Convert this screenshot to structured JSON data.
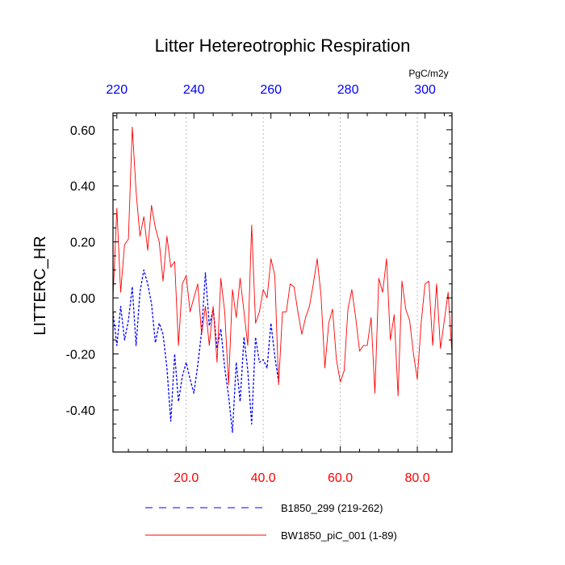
{
  "chart_data": {
    "type": "line",
    "title": "Litter Hetereotrophic Respiration",
    "ylabel": "LITTERC_HR",
    "units": "PgC/m2y",
    "ylim": [
      -0.55,
      0.66
    ],
    "yticks": [
      -0.4,
      -0.2,
      0.0,
      0.2,
      0.4,
      0.6
    ],
    "ytick_labels": [
      "-0.40",
      "-0.20",
      "0.00",
      "0.20",
      "0.40",
      "0.60"
    ],
    "xlim": [
      1,
      89
    ],
    "xticks": [
      20,
      40,
      60,
      80
    ],
    "xtick_labels": [
      "20.0",
      "40.0",
      "60.0",
      "80.0"
    ],
    "x2lim": [
      219,
      307
    ],
    "x2ticks": [
      220,
      240,
      260,
      280,
      300
    ],
    "x2tick_labels": [
      "220",
      "240",
      "260",
      "280",
      "300"
    ],
    "grid_x": [
      20,
      40,
      60,
      80
    ],
    "series": [
      {
        "name": "B1850_299 (219-262)",
        "axis": "top",
        "color": "#0000ff",
        "style": "dashed",
        "x": [
          219,
          220,
          221,
          222,
          223,
          224,
          225,
          226,
          227,
          228,
          229,
          230,
          231,
          232,
          233,
          234,
          235,
          236,
          237,
          238,
          239,
          240,
          241,
          242,
          243,
          244,
          245,
          246,
          247,
          248,
          249,
          250,
          251,
          252,
          253,
          254,
          255,
          256,
          257,
          258,
          259,
          260,
          261,
          262
        ],
        "y": [
          -0.05,
          -0.17,
          -0.03,
          -0.15,
          -0.08,
          0.04,
          -0.17,
          0.02,
          0.1,
          0.05,
          -0.02,
          -0.16,
          -0.09,
          -0.13,
          -0.25,
          -0.44,
          -0.2,
          -0.37,
          -0.28,
          -0.23,
          -0.29,
          -0.34,
          -0.24,
          -0.12,
          0.09,
          -0.1,
          -0.04,
          -0.18,
          -0.11,
          -0.25,
          -0.35,
          -0.48,
          -0.23,
          -0.37,
          -0.14,
          -0.26,
          -0.45,
          -0.14,
          -0.23,
          -0.22,
          -0.25,
          -0.09,
          -0.21,
          -0.3
        ]
      },
      {
        "name": "BW1850_piC_001 (1-89)",
        "axis": "bottom",
        "color": "#ff0000",
        "style": "solid",
        "x": [
          1,
          2,
          3,
          4,
          5,
          6,
          7,
          8,
          9,
          10,
          11,
          12,
          13,
          14,
          15,
          16,
          17,
          18,
          19,
          20,
          21,
          22,
          23,
          24,
          25,
          26,
          27,
          28,
          29,
          30,
          31,
          32,
          33,
          34,
          35,
          36,
          37,
          38,
          39,
          40,
          41,
          42,
          43,
          44,
          45,
          46,
          47,
          48,
          49,
          50,
          51,
          52,
          53,
          54,
          55,
          56,
          57,
          58,
          59,
          60,
          61,
          62,
          63,
          64,
          65,
          66,
          67,
          68,
          69,
          70,
          71,
          72,
          73,
          74,
          75,
          76,
          77,
          78,
          79,
          80,
          81,
          82,
          83,
          84,
          85,
          86,
          87,
          88,
          89
        ],
        "y": [
          0.0,
          0.32,
          0.02,
          0.19,
          0.21,
          0.61,
          0.38,
          0.22,
          0.29,
          0.17,
          0.33,
          0.25,
          0.2,
          0.06,
          0.22,
          0.11,
          0.13,
          -0.17,
          0.05,
          0.08,
          -0.05,
          0.0,
          0.05,
          -0.13,
          -0.03,
          -0.17,
          -0.03,
          -0.23,
          0.07,
          -0.05,
          -0.31,
          0.03,
          -0.07,
          0.07,
          -0.05,
          -0.17,
          0.26,
          -0.09,
          -0.05,
          0.03,
          0.0,
          0.14,
          0.08,
          -0.31,
          -0.05,
          -0.05,
          0.05,
          0.04,
          -0.05,
          -0.13,
          -0.07,
          -0.03,
          0.05,
          0.14,
          0.01,
          -0.25,
          -0.09,
          -0.04,
          -0.22,
          -0.3,
          -0.26,
          -0.04,
          0.03,
          -0.07,
          -0.19,
          -0.17,
          -0.17,
          -0.07,
          -0.34,
          0.07,
          0.02,
          0.14,
          -0.15,
          -0.06,
          -0.35,
          0.06,
          -0.04,
          -0.08,
          -0.2,
          -0.29,
          -0.09,
          0.05,
          0.06,
          -0.17,
          0.05,
          -0.18,
          -0.08,
          0.02,
          -0.2
        ]
      }
    ],
    "legend": [
      {
        "label": "B1850_299 (219-262)",
        "color": "#0000ff",
        "style": "dashed"
      },
      {
        "label": "BW1850_piC_001 (1-89)",
        "color": "#ff0000",
        "style": "solid"
      }
    ]
  }
}
